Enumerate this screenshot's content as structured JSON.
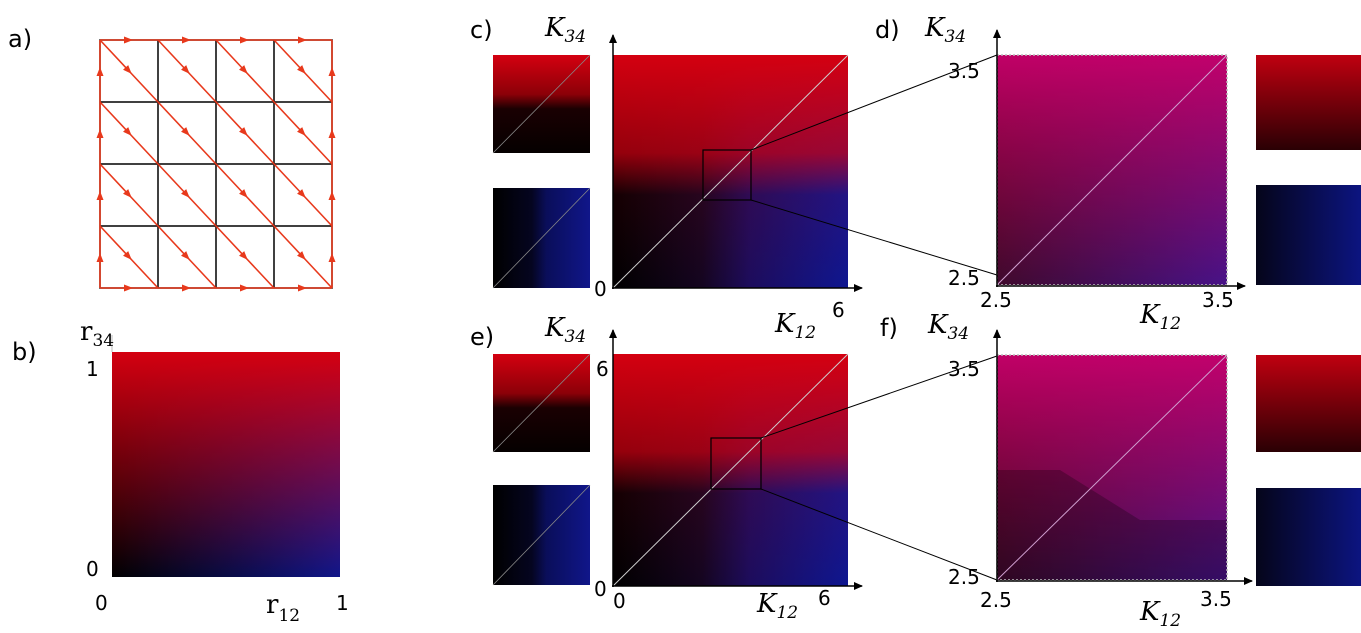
{
  "panels": {
    "a": {
      "label": "a)"
    },
    "b": {
      "label": "b)",
      "x_axis": {
        "symbol": "r",
        "subscript": "12",
        "min": "0",
        "max": "1"
      },
      "y_axis": {
        "symbol": "r",
        "subscript": "34",
        "min": "0",
        "max": "1"
      }
    },
    "c": {
      "label": "c)",
      "x_axis": {
        "symbol": "K",
        "subscript": "12",
        "max": "6"
      },
      "y_axis": {
        "symbol": "K",
        "subscript": "34",
        "min": "0"
      }
    },
    "d": {
      "label": "d)",
      "x_axis": {
        "symbol": "K",
        "subscript": "12",
        "min": "2.5",
        "max": "3.5"
      },
      "y_axis": {
        "symbol": "K",
        "subscript": "34",
        "min": "2.5",
        "max": "3.5"
      }
    },
    "e": {
      "label": "e)",
      "x_axis": {
        "symbol": "K",
        "subscript": "12",
        "min": "0",
        "max": "6"
      },
      "y_axis": {
        "symbol": "K",
        "subscript": "34",
        "min": "0",
        "max": "6"
      }
    },
    "f": {
      "label": "f)",
      "x_axis": {
        "symbol": "K",
        "subscript": "12",
        "min": "2.5",
        "max": "3.5"
      },
      "y_axis": {
        "symbol": "K",
        "subscript": "34",
        "min": "2.5",
        "max": "3.5"
      }
    }
  },
  "lattice": {
    "rows": 4,
    "cols": 4,
    "edge_color": "#e8391c"
  },
  "colors": {
    "red": "#d40010",
    "magenta": "#d0109a",
    "blue": "#10168a",
    "black": "#000000",
    "diagonal": "#c8c8c8"
  }
}
